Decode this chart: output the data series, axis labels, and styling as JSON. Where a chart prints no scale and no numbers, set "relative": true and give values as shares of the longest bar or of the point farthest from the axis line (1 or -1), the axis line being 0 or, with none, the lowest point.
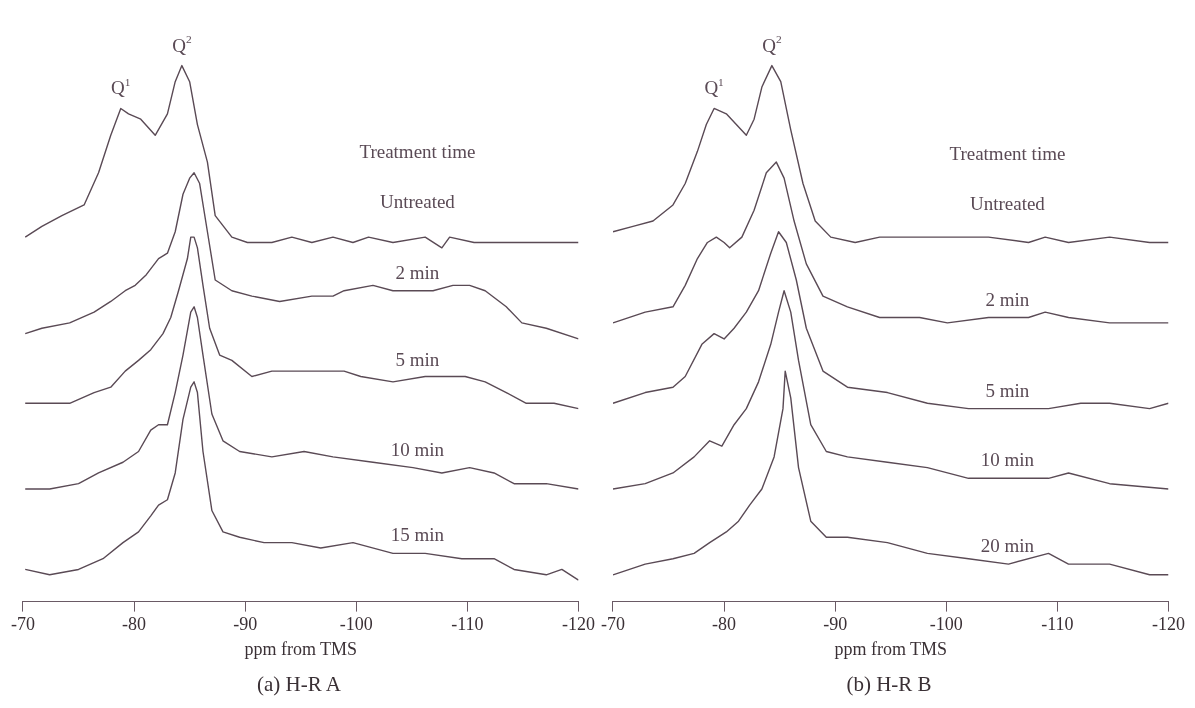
{
  "chart_data": [
    {
      "type": "line",
      "title": "(a) H-R A",
      "xlabel": "ppm from TMS",
      "legend_title": "Treatment time",
      "relative": true,
      "xlim": [
        -70,
        -120
      ],
      "xticks": [
        -70,
        -80,
        -90,
        -100,
        -110,
        -120
      ],
      "tick_labels": "x",
      "grid": false,
      "legend": false,
      "marker": "none",
      "line_style": "solid",
      "annotations": [
        {
          "text": "Q$^{1}$",
          "x": -78.8,
          "y": 0.92
        },
        {
          "text": "Q$^{2}$",
          "x": -84.3,
          "y": 1.0
        }
      ],
      "series": [
        {
          "name": "Untreated",
          "color": "#5a4a55",
          "x": [
            -70.2,
            -71.7,
            -73.5,
            -75.5,
            -76.8,
            -77.9,
            -78.8,
            -79.5,
            -80.6,
            -81.9,
            -83.0,
            -83.7,
            -84.3,
            -85.0,
            -85.7,
            -86.6,
            -87.3,
            -88.8,
            -90.2,
            -92.4,
            -94.2,
            -96.0,
            -97.9,
            -99.7,
            -101.1,
            -103.3,
            -106.2,
            -107.7,
            -108.4,
            -110.6,
            -114.2,
            -117.8,
            -120.0
          ],
          "values": [
            0.68,
            0.7,
            0.72,
            0.74,
            0.8,
            0.87,
            0.92,
            0.91,
            0.9,
            0.87,
            0.91,
            0.97,
            1.0,
            0.97,
            0.89,
            0.82,
            0.72,
            0.68,
            0.67,
            0.67,
            0.68,
            0.67,
            0.68,
            0.67,
            0.68,
            0.67,
            0.68,
            0.66,
            0.68,
            0.67,
            0.67,
            0.67,
            0.67
          ]
        },
        {
          "name": "2 min",
          "color": "#5a4a55",
          "x": [
            -70.2,
            -71.7,
            -74.2,
            -76.4,
            -77.9,
            -79.2,
            -80.1,
            -81.1,
            -82.2,
            -83.0,
            -83.7,
            -84.4,
            -85.0,
            -85.4,
            -85.9,
            -86.6,
            -87.3,
            -88.8,
            -90.6,
            -93.1,
            -96.0,
            -97.9,
            -98.9,
            -101.5,
            -103.3,
            -105.1,
            -106.9,
            -108.7,
            -110.2,
            -111.6,
            -113.5,
            -114.9,
            -117.1,
            -120.0
          ],
          "values": [
            0.5,
            0.51,
            0.52,
            0.54,
            0.56,
            0.58,
            0.59,
            0.61,
            0.64,
            0.65,
            0.69,
            0.76,
            0.79,
            0.8,
            0.78,
            0.69,
            0.6,
            0.58,
            0.57,
            0.56,
            0.57,
            0.57,
            0.58,
            0.59,
            0.58,
            0.58,
            0.58,
            0.59,
            0.59,
            0.58,
            0.55,
            0.52,
            0.51,
            0.49
          ]
        },
        {
          "name": "5 min",
          "color": "#5a4a55",
          "x": [
            -70.2,
            -72.4,
            -74.2,
            -76.4,
            -77.9,
            -79.2,
            -80.4,
            -81.5,
            -82.6,
            -83.3,
            -84.0,
            -84.8,
            -85.1,
            -85.4,
            -85.7,
            -86.2,
            -86.8,
            -87.7,
            -88.8,
            -90.6,
            -92.4,
            -95.3,
            -97.9,
            -98.9,
            -100.4,
            -103.3,
            -106.2,
            -109.8,
            -111.6,
            -113.5,
            -115.3,
            -117.8,
            -120.0
          ],
          "values": [
            0.37,
            0.37,
            0.37,
            0.39,
            0.4,
            0.43,
            0.45,
            0.47,
            0.5,
            0.53,
            0.58,
            0.64,
            0.68,
            0.68,
            0.66,
            0.59,
            0.51,
            0.46,
            0.45,
            0.42,
            0.43,
            0.43,
            0.43,
            0.43,
            0.42,
            0.41,
            0.42,
            0.42,
            0.41,
            0.39,
            0.37,
            0.37,
            0.36
          ]
        },
        {
          "name": "10 min",
          "color": "#5a4a55",
          "x": [
            -70.2,
            -72.4,
            -75.0,
            -76.8,
            -79.0,
            -80.4,
            -81.5,
            -82.2,
            -83.0,
            -83.7,
            -84.4,
            -85.1,
            -85.4,
            -85.7,
            -86.2,
            -87.0,
            -88.0,
            -89.5,
            -92.4,
            -95.3,
            -97.9,
            -101.5,
            -105.1,
            -107.7,
            -110.2,
            -112.4,
            -114.2,
            -117.1,
            -120.0
          ],
          "values": [
            0.21,
            0.21,
            0.22,
            0.24,
            0.26,
            0.28,
            0.32,
            0.33,
            0.33,
            0.39,
            0.46,
            0.54,
            0.55,
            0.53,
            0.46,
            0.35,
            0.3,
            0.28,
            0.27,
            0.28,
            0.27,
            0.26,
            0.25,
            0.24,
            0.25,
            0.24,
            0.22,
            0.22,
            0.21
          ]
        },
        {
          "name": "15 min",
          "color": "#5a4a55",
          "x": [
            -70.2,
            -72.4,
            -75.0,
            -77.2,
            -79.0,
            -80.4,
            -81.5,
            -82.2,
            -83.0,
            -83.7,
            -84.4,
            -85.1,
            -85.4,
            -85.7,
            -86.2,
            -87.0,
            -88.0,
            -89.5,
            -91.7,
            -94.2,
            -96.8,
            -99.7,
            -103.3,
            -106.2,
            -109.5,
            -112.4,
            -114.2,
            -117.1,
            -118.5,
            -120.0
          ],
          "values": [
            0.06,
            0.05,
            0.06,
            0.08,
            0.11,
            0.13,
            0.16,
            0.18,
            0.19,
            0.24,
            0.34,
            0.4,
            0.41,
            0.39,
            0.28,
            0.17,
            0.13,
            0.12,
            0.11,
            0.11,
            0.1,
            0.11,
            0.09,
            0.09,
            0.08,
            0.08,
            0.06,
            0.05,
            0.06,
            0.04
          ]
        }
      ]
    },
    {
      "type": "line",
      "title": "(b) H-R B",
      "xlabel": "ppm from TMS",
      "legend_title": "Treatment time",
      "relative": true,
      "xlim": [
        -70,
        -120
      ],
      "xticks": [
        -70,
        -80,
        -90,
        -100,
        -110,
        -120
      ],
      "tick_labels": "x",
      "grid": false,
      "legend": false,
      "marker": "none",
      "line_style": "solid",
      "annotations": [
        {
          "text": "Q$^{1}$",
          "x": -79.1,
          "y": 0.92
        },
        {
          "text": "Q$^{2}$",
          "x": -84.3,
          "y": 1.0
        }
      ],
      "series": [
        {
          "name": "Untreated",
          "color": "#5a4a55",
          "x": [
            -70.0,
            -71.8,
            -73.6,
            -75.4,
            -76.5,
            -77.6,
            -78.4,
            -79.1,
            -80.2,
            -81.1,
            -82.0,
            -82.7,
            -83.4,
            -84.3,
            -85.1,
            -86.0,
            -87.1,
            -88.2,
            -89.6,
            -91.8,
            -94.0,
            -96.5,
            -100.1,
            -103.8,
            -107.4,
            -108.9,
            -111.0,
            -114.7,
            -118.3,
            -120.0
          ],
          "values": [
            0.69,
            0.7,
            0.71,
            0.74,
            0.78,
            0.84,
            0.89,
            0.92,
            0.91,
            0.89,
            0.87,
            0.9,
            0.96,
            1.0,
            0.97,
            0.88,
            0.78,
            0.71,
            0.68,
            0.67,
            0.68,
            0.68,
            0.68,
            0.68,
            0.67,
            0.68,
            0.67,
            0.68,
            0.67,
            0.67
          ]
        },
        {
          "name": "2 min",
          "color": "#5a4a55",
          "x": [
            -70.0,
            -72.9,
            -75.4,
            -76.5,
            -77.6,
            -78.5,
            -79.3,
            -80.0,
            -80.5,
            -81.6,
            -82.7,
            -83.8,
            -84.7,
            -85.4,
            -86.3,
            -87.4,
            -88.9,
            -91.1,
            -94.0,
            -97.6,
            -100.1,
            -103.8,
            -107.4,
            -108.9,
            -111.0,
            -114.7,
            -120.0
          ],
          "values": [
            0.52,
            0.54,
            0.55,
            0.59,
            0.64,
            0.67,
            0.68,
            0.67,
            0.66,
            0.68,
            0.73,
            0.8,
            0.82,
            0.79,
            0.71,
            0.63,
            0.57,
            0.55,
            0.53,
            0.53,
            0.52,
            0.53,
            0.53,
            0.54,
            0.53,
            0.52,
            0.52
          ]
        },
        {
          "name": "5 min",
          "color": "#5a4a55",
          "x": [
            -70.0,
            -72.9,
            -75.4,
            -76.5,
            -78.0,
            -79.1,
            -80.0,
            -80.9,
            -82.0,
            -83.1,
            -84.2,
            -84.9,
            -85.6,
            -86.5,
            -87.4,
            -88.9,
            -91.1,
            -94.7,
            -98.3,
            -102.0,
            -105.6,
            -109.2,
            -112.1,
            -114.7,
            -118.3,
            -120.0
          ],
          "values": [
            0.37,
            0.39,
            0.4,
            0.42,
            0.48,
            0.5,
            0.49,
            0.51,
            0.54,
            0.58,
            0.65,
            0.69,
            0.67,
            0.6,
            0.51,
            0.43,
            0.4,
            0.39,
            0.37,
            0.36,
            0.36,
            0.36,
            0.37,
            0.37,
            0.36,
            0.37
          ]
        },
        {
          "name": "10 min",
          "color": "#5a4a55",
          "x": [
            -70.0,
            -72.9,
            -75.4,
            -77.3,
            -78.7,
            -79.8,
            -80.9,
            -82.0,
            -83.1,
            -84.2,
            -84.9,
            -85.4,
            -86.0,
            -86.7,
            -87.8,
            -89.2,
            -91.1,
            -94.7,
            -98.3,
            -102.0,
            -105.6,
            -109.2,
            -111.0,
            -114.7,
            -120.0
          ],
          "values": [
            0.21,
            0.22,
            0.24,
            0.27,
            0.3,
            0.29,
            0.33,
            0.36,
            0.41,
            0.48,
            0.54,
            0.58,
            0.54,
            0.45,
            0.33,
            0.28,
            0.27,
            0.26,
            0.25,
            0.23,
            0.23,
            0.23,
            0.24,
            0.22,
            0.21
          ]
        },
        {
          "name": "20 min",
          "color": "#5a4a55",
          "x": [
            -70.0,
            -72.9,
            -75.4,
            -77.3,
            -78.7,
            -80.2,
            -81.3,
            -82.3,
            -83.4,
            -84.5,
            -85.3,
            -85.5,
            -86.0,
            -86.7,
            -87.8,
            -89.2,
            -91.1,
            -94.7,
            -98.3,
            -102.0,
            -105.6,
            -109.2,
            -111.0,
            -114.7,
            -118.3,
            -120.0
          ],
          "values": [
            0.05,
            0.07,
            0.08,
            0.09,
            0.11,
            0.13,
            0.15,
            0.18,
            0.21,
            0.27,
            0.36,
            0.43,
            0.38,
            0.25,
            0.15,
            0.12,
            0.12,
            0.11,
            0.09,
            0.08,
            0.07,
            0.09,
            0.07,
            0.07,
            0.05,
            0.05
          ]
        }
      ]
    }
  ]
}
